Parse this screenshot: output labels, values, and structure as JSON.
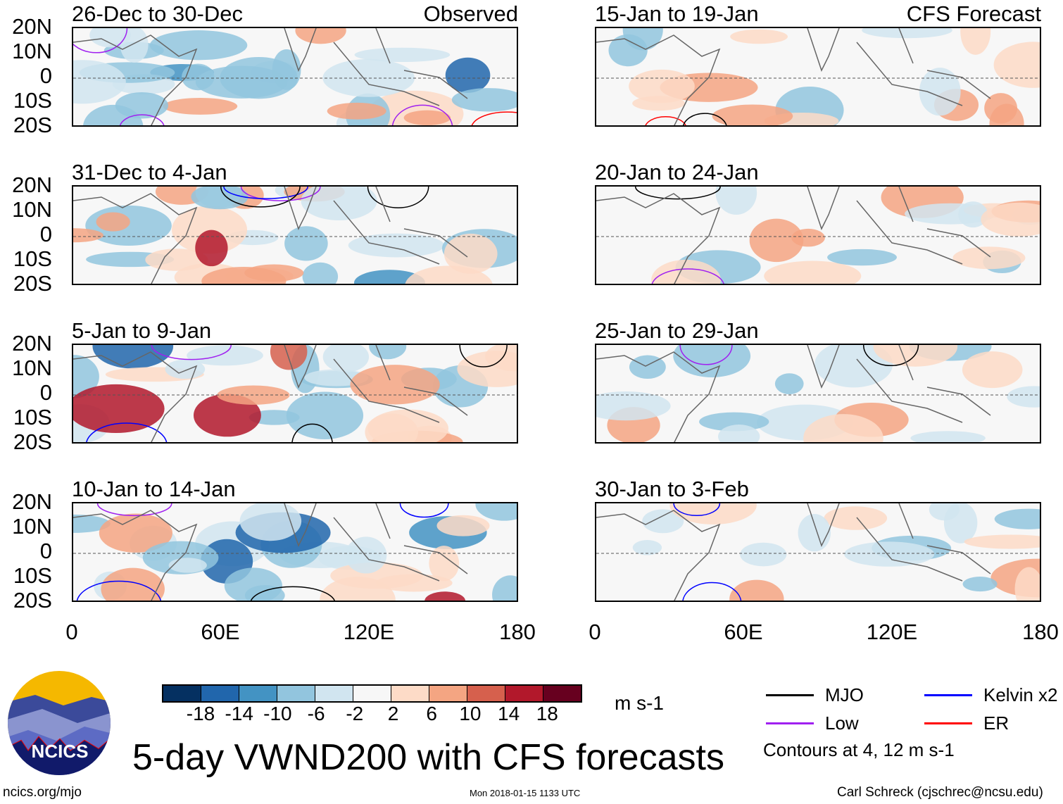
{
  "panels_left": [
    {
      "title": "26-Dec to 30-Dec",
      "tag": "Observed"
    },
    {
      "title": "31-Dec to 4-Jan"
    },
    {
      "title": "5-Jan to 9-Jan"
    },
    {
      "title": "10-Jan to 14-Jan"
    }
  ],
  "panels_right": [
    {
      "title": "15-Jan to 19-Jan",
      "tag": "CFS Forecast"
    },
    {
      "title": "20-Jan to 24-Jan"
    },
    {
      "title": "25-Jan to 29-Jan"
    },
    {
      "title": "30-Jan to 3-Feb"
    }
  ],
  "lat_labels": [
    "20N",
    "10N",
    "0",
    "10S",
    "20S"
  ],
  "lon_labels": [
    "0",
    "60E",
    "120E",
    "180"
  ],
  "colorbar": {
    "colors": [
      "#053061",
      "#2166ac",
      "#4393c3",
      "#92c5de",
      "#d1e5f0",
      "#f7f7f7",
      "#fddbc7",
      "#f4a582",
      "#d6604d",
      "#b2182b",
      "#67001f"
    ],
    "labels": [
      "-18",
      "-14",
      "-10",
      "-6",
      "-2",
      "2",
      "6",
      "10",
      "14",
      "18"
    ],
    "units": "m s-1"
  },
  "legend": {
    "items": [
      {
        "label": "MJO",
        "color": "#000000"
      },
      {
        "label": "Kelvin x2",
        "color": "#0000ff"
      },
      {
        "label": "Low",
        "color": "#a020f0"
      },
      {
        "label": "ER",
        "color": "#ff0000"
      }
    ],
    "note": "Contours at 4, 12 m s-1"
  },
  "logo_text": "NCICS",
  "main_title": "5-day VWND200 with CFS forecasts",
  "footer": {
    "url": "ncics.org/mjo",
    "timestamp": "Mon 2018-01-15 1133 UTC",
    "credit": "Carl Schreck (cjschrec@ncsu.edu)"
  }
}
